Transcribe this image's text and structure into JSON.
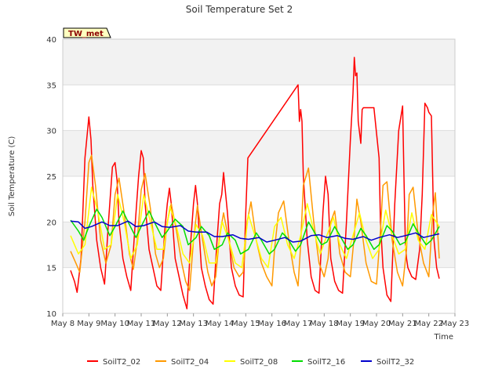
{
  "chart_data": {
    "type": "line",
    "title": "Soil Temperature Set 2",
    "xlabel": "Time",
    "ylabel": "Soil Temperature (C)",
    "badge": "TW_met",
    "ylim": [
      10,
      40
    ],
    "xlim": [
      8,
      23
    ],
    "yticks": [
      10,
      15,
      20,
      25,
      30,
      35,
      40
    ],
    "xticks": [
      8,
      9,
      10,
      11,
      12,
      13,
      14,
      15,
      16,
      17,
      18,
      19,
      20,
      21,
      22,
      23
    ],
    "xtick_labels": [
      "May 8",
      "May 9",
      "May 10",
      "May 11",
      "May 12",
      "May 13",
      "May 14",
      "May 15",
      "May 16",
      "May 17",
      "May 18",
      "May 19",
      "May 20",
      "May 21",
      "May 22",
      "May 23"
    ],
    "grid": true,
    "legend_position": "bottom",
    "series": [
      {
        "name": "SoilT2_02",
        "color": "#ff0000",
        "x": [
          8.3,
          8.45,
          8.55,
          8.7,
          8.85,
          9.0,
          9.08,
          9.15,
          9.3,
          9.45,
          9.6,
          9.75,
          9.9,
          10.0,
          10.08,
          10.15,
          10.3,
          10.45,
          10.6,
          10.75,
          10.9,
          11.0,
          11.08,
          11.15,
          11.3,
          11.45,
          11.6,
          11.75,
          11.9,
          12.0,
          12.08,
          12.15,
          12.3,
          12.45,
          12.6,
          12.75,
          12.9,
          13.0,
          13.08,
          13.15,
          13.3,
          13.45,
          13.6,
          13.75,
          13.9,
          14.0,
          14.08,
          14.15,
          14.3,
          14.45,
          14.6,
          14.75,
          14.9,
          15.0,
          15.08,
          17.0,
          17.05,
          17.1,
          17.15,
          17.2,
          17.35,
          17.5,
          17.65,
          17.8,
          17.95,
          18.05,
          18.15,
          18.25,
          18.4,
          18.55,
          18.7,
          18.85,
          19.0,
          19.1,
          19.15,
          19.2,
          19.25,
          19.3,
          19.4,
          19.45,
          19.5,
          19.55,
          19.7,
          19.9,
          20.1,
          20.15,
          20.25,
          20.4,
          20.55,
          20.7,
          20.85,
          21.0,
          21.05,
          21.1,
          21.15,
          21.2,
          21.35,
          21.5,
          21.65,
          21.75,
          21.85,
          21.95,
          22.0,
          22.1,
          22.2,
          22.3,
          22.4
        ],
        "values": [
          14.7,
          13.5,
          12.3,
          16.0,
          27.0,
          31.5,
          29.0,
          24.0,
          18.0,
          15.0,
          13.2,
          20.0,
          26.0,
          26.5,
          24.5,
          20.0,
          16.0,
          14.0,
          12.5,
          19.0,
          25.0,
          27.8,
          27.0,
          22.0,
          17.0,
          15.0,
          13.0,
          12.5,
          19.0,
          22.0,
          23.7,
          22.0,
          16.0,
          14.0,
          12.0,
          10.5,
          18.0,
          22.0,
          24.0,
          22.0,
          15.0,
          13.0,
          11.5,
          11.0,
          18.0,
          22.0,
          23.0,
          25.4,
          21.0,
          15.0,
          13.0,
          12.0,
          11.8,
          21.0,
          27.0,
          35.0,
          31.0,
          32.3,
          31.0,
          25.0,
          18.0,
          14.0,
          12.5,
          12.2,
          21.0,
          25.0,
          23.0,
          16.0,
          13.5,
          12.5,
          12.2,
          20.0,
          29.0,
          34.0,
          38.0,
          36.0,
          36.3,
          31.0,
          28.6,
          32.3,
          32.5,
          32.5,
          32.5,
          32.5,
          27.0,
          20.0,
          15.0,
          12.0,
          11.3,
          22.0,
          30.0,
          32.7,
          25.0,
          18.0,
          16.0,
          15.0,
          14.0,
          13.7,
          17.0,
          23.0,
          33.0,
          32.5,
          32.0,
          31.6,
          18.0,
          15.0,
          13.8
        ]
      },
      {
        "name": "SoilT2_04",
        "color": "#ff9900",
        "x": [
          8.3,
          8.5,
          8.65,
          8.85,
          9.0,
          9.1,
          9.25,
          9.45,
          9.65,
          9.85,
          10.0,
          10.15,
          10.35,
          10.55,
          10.7,
          10.85,
          11.0,
          11.15,
          11.35,
          11.55,
          11.7,
          11.85,
          12.0,
          12.15,
          12.35,
          12.55,
          12.7,
          12.85,
          13.0,
          13.15,
          13.35,
          13.55,
          13.7,
          13.85,
          14.0,
          14.15,
          14.35,
          14.55,
          14.75,
          14.9,
          15.05,
          15.2,
          15.4,
          15.6,
          15.8,
          16.0,
          16.1,
          16.25,
          16.45,
          16.65,
          16.85,
          17.0,
          17.1,
          17.2,
          17.4,
          17.6,
          17.8,
          18.0,
          18.15,
          18.25,
          18.4,
          18.6,
          18.8,
          19.0,
          19.15,
          19.25,
          19.4,
          19.6,
          19.8,
          20.0,
          20.15,
          20.25,
          20.4,
          20.6,
          20.8,
          21.0,
          21.15,
          21.25,
          21.4,
          21.6,
          21.8,
          22.0,
          22.15,
          22.25,
          22.4
        ],
        "values": [
          16.8,
          15.5,
          14.5,
          20.0,
          26.5,
          27.3,
          24.0,
          18.0,
          15.5,
          17.5,
          23.0,
          24.8,
          21.0,
          16.5,
          14.8,
          18.0,
          23.5,
          25.3,
          21.5,
          16.5,
          15.0,
          16.0,
          20.0,
          22.0,
          19.0,
          15.5,
          13.5,
          12.5,
          18.0,
          21.8,
          18.0,
          14.5,
          13.0,
          14.0,
          18.5,
          21.0,
          18.0,
          15.0,
          14.0,
          14.5,
          20.0,
          22.2,
          18.0,
          15.5,
          14.0,
          13.0,
          17.0,
          21.0,
          22.3,
          18.0,
          14.5,
          13.0,
          17.5,
          24.0,
          25.9,
          20.0,
          15.5,
          14.0,
          16.0,
          20.0,
          21.2,
          16.5,
          14.5,
          14.0,
          18.5,
          22.5,
          20.0,
          15.5,
          13.5,
          13.2,
          19.0,
          24.0,
          24.4,
          18.0,
          14.5,
          13.0,
          17.0,
          23.0,
          23.8,
          18.5,
          15.5,
          14.0,
          21.0,
          23.2,
          16.0
        ]
      },
      {
        "name": "SoilT2_08",
        "color": "#ffff00",
        "x": [
          8.3,
          8.6,
          8.85,
          9.1,
          9.35,
          9.6,
          9.85,
          10.1,
          10.35,
          10.6,
          10.85,
          11.1,
          11.35,
          11.6,
          11.85,
          12.1,
          12.35,
          12.6,
          12.85,
          13.1,
          13.35,
          13.6,
          13.85,
          14.1,
          14.35,
          14.6,
          14.85,
          15.1,
          15.35,
          15.6,
          15.85,
          16.1,
          16.35,
          16.6,
          16.85,
          17.1,
          17.35,
          17.6,
          17.85,
          18.1,
          18.35,
          18.6,
          18.85,
          19.1,
          19.35,
          19.6,
          19.85,
          20.1,
          20.35,
          20.6,
          20.85,
          21.1,
          21.35,
          21.6,
          21.85,
          22.1,
          22.4
        ],
        "values": [
          18.5,
          16.5,
          17.5,
          23.8,
          21.0,
          17.0,
          17.5,
          23.0,
          20.0,
          16.0,
          17.5,
          23.0,
          20.0,
          17.0,
          17.0,
          21.7,
          19.5,
          16.5,
          15.5,
          19.7,
          18.5,
          15.5,
          15.5,
          20.0,
          18.0,
          15.5,
          15.0,
          20.8,
          18.5,
          16.0,
          15.0,
          19.5,
          20.5,
          17.5,
          16.0,
          18.5,
          22.0,
          19.0,
          16.5,
          18.5,
          20.5,
          17.5,
          16.0,
          18.5,
          21.0,
          18.0,
          16.0,
          17.0,
          21.3,
          18.5,
          16.5,
          17.0,
          21.0,
          18.0,
          17.0,
          20.8,
          19.5
        ]
      },
      {
        "name": "SoilT2_16",
        "color": "#00dd00",
        "x": [
          8.3,
          8.6,
          8.8,
          9.0,
          9.3,
          9.5,
          9.8,
          10.0,
          10.3,
          10.5,
          10.8,
          11.0,
          11.3,
          11.5,
          11.8,
          12.0,
          12.3,
          12.6,
          12.8,
          13.1,
          13.3,
          13.6,
          13.8,
          14.1,
          14.3,
          14.6,
          14.8,
          15.1,
          15.4,
          15.6,
          15.9,
          16.1,
          16.4,
          16.6,
          16.9,
          17.1,
          17.4,
          17.6,
          17.9,
          18.1,
          18.4,
          18.6,
          18.9,
          19.1,
          19.4,
          19.6,
          19.9,
          20.1,
          20.4,
          20.6,
          20.9,
          21.1,
          21.4,
          21.6,
          21.9,
          22.1,
          22.4
        ],
        "values": [
          20.2,
          19.0,
          18.0,
          19.5,
          21.4,
          20.5,
          18.5,
          19.5,
          21.2,
          20.0,
          18.3,
          19.5,
          21.2,
          20.0,
          18.3,
          19.0,
          20.3,
          19.5,
          17.5,
          18.3,
          19.5,
          18.5,
          17.0,
          17.5,
          18.8,
          18.0,
          16.5,
          17.0,
          18.8,
          18.0,
          16.5,
          17.0,
          18.8,
          18.2,
          16.8,
          17.5,
          20.0,
          19.0,
          17.5,
          17.8,
          19.5,
          18.5,
          17.0,
          17.5,
          19.3,
          18.5,
          17.0,
          17.5,
          19.6,
          19.0,
          17.5,
          17.8,
          19.8,
          18.8,
          17.5,
          18.0,
          19.5
        ]
      },
      {
        "name": "SoilT2_32",
        "color": "#0000cc",
        "x": [
          8.3,
          8.6,
          8.85,
          9.1,
          9.5,
          9.8,
          10.1,
          10.5,
          10.8,
          11.1,
          11.5,
          11.8,
          12.1,
          12.5,
          12.8,
          13.1,
          13.5,
          13.8,
          14.1,
          14.5,
          14.8,
          15.1,
          15.5,
          15.8,
          16.1,
          16.5,
          16.8,
          17.1,
          17.5,
          17.8,
          18.1,
          18.5,
          18.8,
          19.1,
          19.5,
          19.8,
          20.1,
          20.5,
          20.8,
          21.1,
          21.5,
          21.8,
          22.1,
          22.4
        ],
        "values": [
          20.1,
          20.0,
          19.3,
          19.5,
          20.0,
          19.6,
          19.6,
          20.1,
          19.5,
          19.6,
          20.0,
          19.5,
          19.4,
          19.6,
          19.0,
          18.9,
          18.9,
          18.4,
          18.4,
          18.6,
          18.2,
          18.1,
          18.3,
          17.8,
          18.0,
          18.3,
          17.8,
          17.9,
          18.5,
          18.6,
          18.3,
          18.5,
          18.2,
          18.1,
          18.4,
          18.0,
          18.3,
          18.6,
          18.3,
          18.5,
          18.8,
          18.3,
          18.5,
          18.7
        ]
      }
    ]
  }
}
